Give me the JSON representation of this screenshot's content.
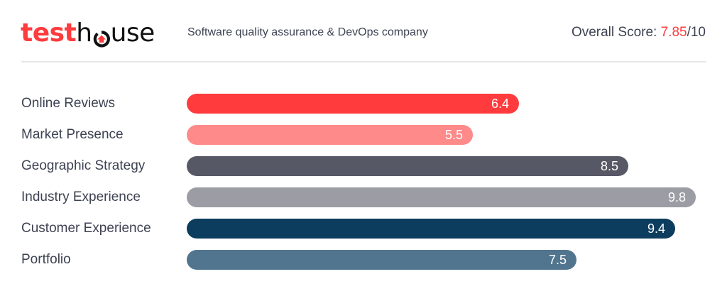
{
  "header": {
    "logo_part1": "test",
    "logo_part2_h": "h",
    "logo_part2_rest": "use",
    "tagline": "Software quality assurance & DevOps company",
    "overall_label": "Overall Score: ",
    "overall_score": "7.85",
    "overall_suffix": "/10"
  },
  "colors": {
    "brand_red": "#ff3b3d",
    "text": "#3d4252"
  },
  "chart_data": {
    "type": "bar",
    "orientation": "horizontal",
    "title": "",
    "xlabel": "",
    "ylabel": "",
    "xlim": [
      0,
      10
    ],
    "grid": false,
    "categories": [
      "Online Reviews",
      "Market Presence",
      "Geographic Strategy",
      "Industry Experience",
      "Customer Experience",
      "Portfolio"
    ],
    "values": [
      6.4,
      5.5,
      8.5,
      9.8,
      9.4,
      7.5
    ],
    "value_labels": [
      "6.4",
      "5.5",
      "8.5",
      "9.8",
      "9.4",
      "7.5"
    ],
    "colors": [
      "#ff3b3d",
      "#ff8a8a",
      "#575866",
      "#9c9ca5",
      "#0d3d5e",
      "#52758f"
    ]
  }
}
